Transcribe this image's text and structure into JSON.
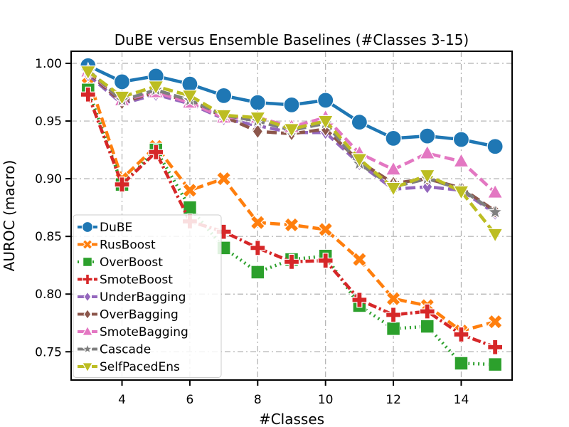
{
  "chart_data": {
    "type": "line",
    "title": "DuBE versus Ensemble Baselines (#Classes 3-15)",
    "xlabel": "#Classes",
    "ylabel": "AUROC (macro)",
    "xlim": [
      2.5,
      15.5
    ],
    "ylim": [
      0.7255,
      1.0105
    ],
    "xticks": [
      4,
      6,
      8,
      10,
      12,
      14
    ],
    "xtick_labels": [
      "4",
      "6",
      "8",
      "10",
      "12",
      "14"
    ],
    "yticks": [
      0.75,
      0.8,
      0.85,
      0.9,
      0.95,
      1.0
    ],
    "ytick_labels": [
      "0.75",
      "0.80",
      "0.85",
      "0.90",
      "0.95",
      "1.00"
    ],
    "grid": true,
    "legend_position": "lower-left",
    "x": [
      3,
      4,
      5,
      6,
      7,
      8,
      9,
      10,
      11,
      12,
      13,
      14,
      15
    ],
    "series": [
      {
        "name": "DuBE",
        "color": "#1f77b4",
        "marker": "circle",
        "dash": "solid",
        "values": [
          0.998,
          0.984,
          0.989,
          0.982,
          0.972,
          0.966,
          0.964,
          0.968,
          0.949,
          0.935,
          0.937,
          0.934,
          0.928
        ]
      },
      {
        "name": "RusBoost",
        "color": "#ff7f0e",
        "marker": "x",
        "dash": "dashed",
        "values": [
          0.988,
          0.9,
          0.928,
          0.89,
          0.9,
          0.862,
          0.86,
          0.856,
          0.83,
          0.796,
          0.79,
          0.768,
          0.776
        ]
      },
      {
        "name": "OverBoost",
        "color": "#2ca02c",
        "marker": "square",
        "dash": "dotted",
        "values": [
          0.977,
          0.895,
          0.925,
          0.875,
          0.84,
          0.819,
          0.83,
          0.833,
          0.79,
          0.77,
          0.772,
          0.74,
          0.739
        ]
      },
      {
        "name": "SmoteBoost",
        "color": "#d62728",
        "marker": "plus",
        "dash": "dashdot",
        "values": [
          0.973,
          0.895,
          0.923,
          0.863,
          0.854,
          0.84,
          0.828,
          0.829,
          0.795,
          0.782,
          0.785,
          0.765,
          0.754
        ]
      },
      {
        "name": "UnderBagging",
        "color": "#9467bd",
        "marker": "diamond",
        "dash": "dashed",
        "values": [
          0.99,
          0.965,
          0.973,
          0.965,
          0.952,
          0.946,
          0.94,
          0.94,
          0.913,
          0.891,
          0.893,
          0.89,
          0.87
        ]
      },
      {
        "name": "OverBagging",
        "color": "#8c564b",
        "marker": "diamond",
        "dash": "dashed",
        "values": [
          0.992,
          0.966,
          0.975,
          0.967,
          0.954,
          0.941,
          0.939,
          0.943,
          0.915,
          0.896,
          0.9,
          0.892,
          0.872
        ]
      },
      {
        "name": "SmoteBagging",
        "color": "#e377c2",
        "marker": "triangle-up",
        "dash": "dashed",
        "values": [
          0.993,
          0.968,
          0.975,
          0.966,
          0.953,
          0.953,
          0.945,
          0.953,
          0.922,
          0.908,
          0.922,
          0.915,
          0.888
        ]
      },
      {
        "name": "Cascade",
        "color": "#7f7f7f",
        "marker": "star",
        "dash": "dashed",
        "values": [
          0.994,
          0.968,
          0.977,
          0.968,
          0.955,
          0.95,
          0.942,
          0.948,
          0.913,
          0.893,
          0.9,
          0.891,
          0.871
        ]
      },
      {
        "name": "SelfPacedEns",
        "color": "#bcbd22",
        "marker": "triangle-down",
        "dash": "dashed",
        "values": [
          0.993,
          0.971,
          0.98,
          0.972,
          0.955,
          0.953,
          0.943,
          0.95,
          0.917,
          0.892,
          0.903,
          0.889,
          0.852
        ]
      }
    ]
  }
}
